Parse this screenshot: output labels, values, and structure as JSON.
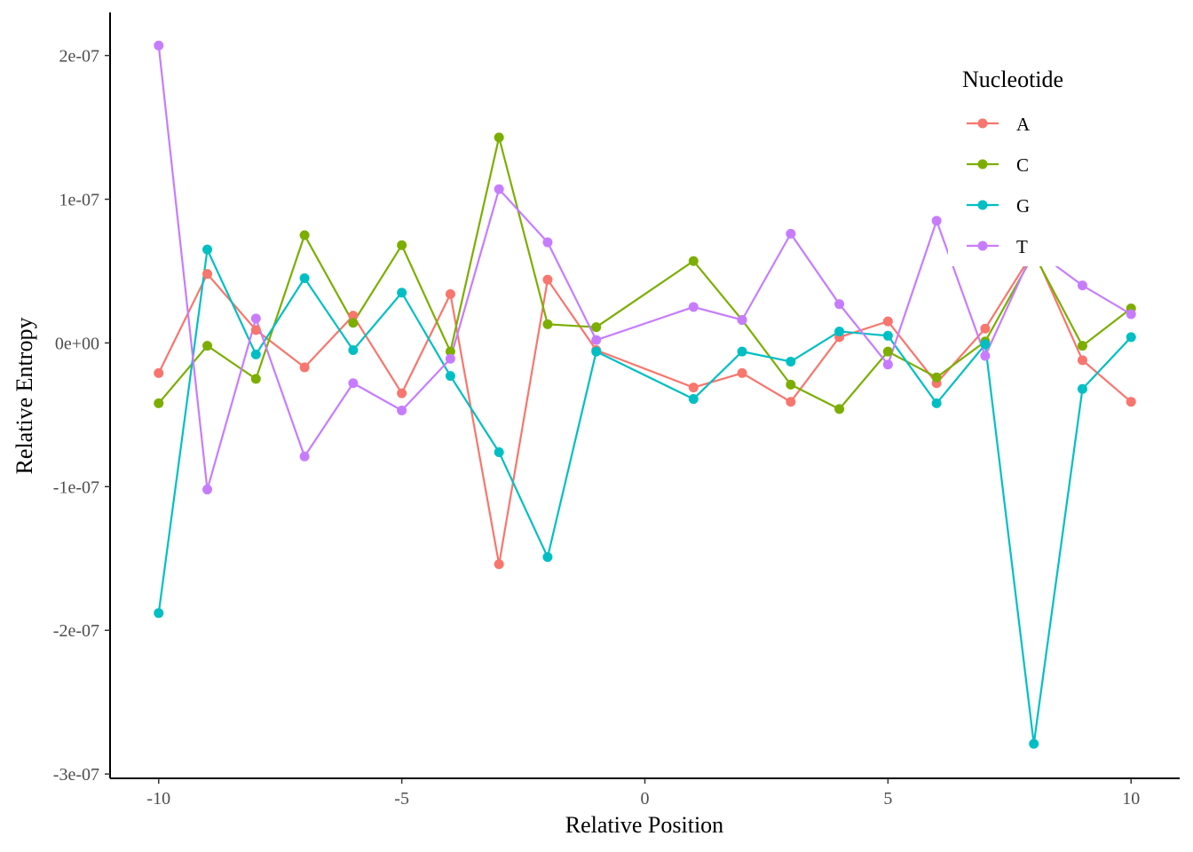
{
  "chart_data": {
    "type": "line",
    "xlabel": "Relative Position",
    "ylabel": "Relative Entropy",
    "xlim": [
      -11,
      11
    ],
    "ylim": [
      -3.03e-07,
      2.3e-07
    ],
    "x_ticks": [
      -10,
      -5,
      0,
      5,
      10
    ],
    "x_tick_labels": [
      "-10",
      "-5",
      "0",
      "5",
      "10"
    ],
    "y_ticks": [
      2e-07,
      1e-07,
      0,
      -1e-07,
      -2e-07,
      -3e-07
    ],
    "y_tick_labels": [
      "2e-07",
      "1e-07",
      "0e+00",
      "-1e-07",
      "-2e-07",
      "-3e-07"
    ],
    "grid": false,
    "legend": {
      "title": "Nucleotide",
      "placement": "top-right"
    },
    "x": [
      -10,
      -9,
      -8,
      -7,
      -6,
      -5,
      -4,
      -3,
      -2,
      -1,
      1,
      2,
      3,
      4,
      5,
      6,
      7,
      8,
      9,
      10
    ],
    "series": [
      {
        "name": "A",
        "color": "#F8766D",
        "values": [
          -2.1e-08,
          4.8e-08,
          9e-09,
          -1.7e-08,
          1.9e-08,
          -3.5e-08,
          3.4e-08,
          -1.54e-07,
          4.4e-08,
          -5e-09,
          -3.1e-08,
          -2.1e-08,
          -4.1e-08,
          4e-09,
          1.5e-08,
          -2.8e-08,
          1e-08,
          6.4e-08,
          -1.2e-08,
          -4.1e-08
        ]
      },
      {
        "name": "C",
        "color": "#7CAE00",
        "values": [
          -4.2e-08,
          -2e-09,
          -2.5e-08,
          7.5e-08,
          1.4e-08,
          6.8e-08,
          -6e-09,
          1.43e-07,
          1.3e-08,
          1.1e-08,
          5.7e-08,
          1.6e-08,
          -2.9e-08,
          -4.6e-08,
          -6e-09,
          -2.4e-08,
          1e-09,
          6.2e-08,
          -2e-09,
          2.4e-08
        ]
      },
      {
        "name": "G",
        "color": "#00BFC4",
        "values": [
          -1.88e-07,
          6.5e-08,
          -8e-09,
          4.5e-08,
          -5e-09,
          3.5e-08,
          -2.3e-08,
          -7.6e-08,
          -1.49e-07,
          -6e-09,
          -3.9e-08,
          -6e-09,
          -1.3e-08,
          8e-09,
          5e-09,
          -4.2e-08,
          -1e-09,
          -2.79e-07,
          -3.2e-08,
          4e-09
        ]
      },
      {
        "name": "T",
        "color": "#C77CFF",
        "values": [
          2.07e-07,
          -1.02e-07,
          1.7e-08,
          -7.9e-08,
          -2.8e-08,
          -4.7e-08,
          -1.1e-08,
          1.07e-07,
          7e-08,
          2e-09,
          2.5e-08,
          1.6e-08,
          7.6e-08,
          2.7e-08,
          -1.5e-08,
          8.5e-08,
          -9e-09,
          6.5e-08,
          4e-08,
          2e-08
        ]
      }
    ]
  }
}
